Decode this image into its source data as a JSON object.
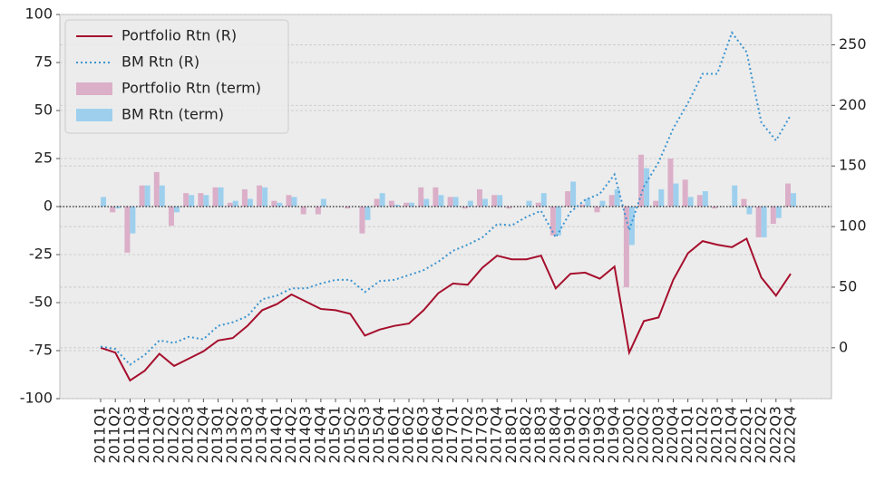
{
  "chart_data": {
    "type": "bar",
    "categories": [
      "2011Q1",
      "2011Q2",
      "2011Q3",
      "2011Q4",
      "2012Q1",
      "2012Q2",
      "2012Q3",
      "2012Q4",
      "2013Q1",
      "2013Q2",
      "2013Q3",
      "2013Q4",
      "2014Q1",
      "2014Q2",
      "2014Q3",
      "2014Q4",
      "2015Q1",
      "2015Q2",
      "2015Q3",
      "2015Q4",
      "2016Q1",
      "2016Q2",
      "2016Q3",
      "2016Q4",
      "2017Q1",
      "2017Q2",
      "2017Q3",
      "2017Q4",
      "2018Q1",
      "2018Q2",
      "2018Q3",
      "2018Q4",
      "2019Q1",
      "2019Q2",
      "2019Q3",
      "2019Q4",
      "2020Q1",
      "2020Q2",
      "2020Q3",
      "2020Q4",
      "2021Q1",
      "2021Q2",
      "2021Q3",
      "2021Q4",
      "2022Q1",
      "2022Q2",
      "2022Q3",
      "2022Q4"
    ],
    "series": [
      {
        "name": "Portfolio Rtn (R)",
        "type": "line",
        "linestyle": "solid",
        "color": "#a60f2d",
        "axis": "y2",
        "values": [
          0,
          -4,
          -27,
          -19,
          -5,
          -15,
          -9,
          -3,
          6,
          8,
          18,
          31,
          36,
          44,
          38,
          32,
          31,
          28,
          10,
          15,
          18,
          20,
          31,
          45,
          53,
          52,
          66,
          76,
          73,
          73,
          76,
          49,
          61,
          62,
          57,
          67,
          -4,
          22,
          25,
          56,
          78,
          88,
          85,
          83,
          90,
          58,
          43,
          61
        ]
      },
      {
        "name": "BM Rtn (R)",
        "type": "line",
        "linestyle": "dotted",
        "color": "#3b94cf",
        "axis": "y2",
        "values": [
          1,
          -1,
          -14,
          -6,
          6,
          4,
          9,
          7,
          18,
          21,
          26,
          40,
          43,
          49,
          49,
          53,
          56,
          56,
          46,
          55,
          56,
          60,
          64,
          71,
          80,
          85,
          91,
          102,
          101,
          108,
          113,
          91,
          112,
          122,
          127,
          143,
          97,
          133,
          153,
          181,
          202,
          226,
          226,
          260,
          244,
          186,
          171,
          192
        ]
      },
      {
        "name": "Portfolio Rtn (term)",
        "type": "bar",
        "color": "#dbafc8",
        "values": [
          0,
          -3,
          -24,
          11,
          18,
          -10,
          7,
          7,
          10,
          2,
          9,
          11,
          3,
          6,
          -4,
          -4,
          0,
          -1,
          -14,
          4,
          3,
          2,
          10,
          10,
          5,
          -1,
          9,
          6,
          -1,
          0,
          2,
          -15,
          8,
          1,
          -3,
          6,
          -42,
          27,
          3,
          25,
          14,
          6,
          -1,
          0,
          4,
          -16,
          -9,
          12
        ]
      },
      {
        "name": "BM Rtn (term)",
        "type": "bar",
        "color": "#9ed0ee",
        "values": [
          5,
          -1,
          -14,
          11,
          11,
          -3,
          6,
          6,
          10,
          3,
          4,
          10,
          2,
          5,
          0,
          4,
          0,
          0,
          -7,
          7,
          1,
          2,
          4,
          6,
          5,
          3,
          4,
          6,
          0,
          3,
          7,
          -15,
          13,
          4,
          3,
          9,
          -20,
          20,
          9,
          12,
          5,
          8,
          0,
          11,
          -4,
          -16,
          -6,
          7
        ]
      }
    ],
    "ylim": [
      -100,
      100
    ],
    "yticks": [
      -100,
      -75,
      -50,
      -25,
      0,
      25,
      50,
      75,
      100
    ],
    "y2lim": [
      -42,
      275
    ],
    "y2ticks": [
      0,
      50,
      100,
      150,
      200,
      250
    ],
    "reference_line": 0,
    "grid": true,
    "legend": "upper left"
  }
}
